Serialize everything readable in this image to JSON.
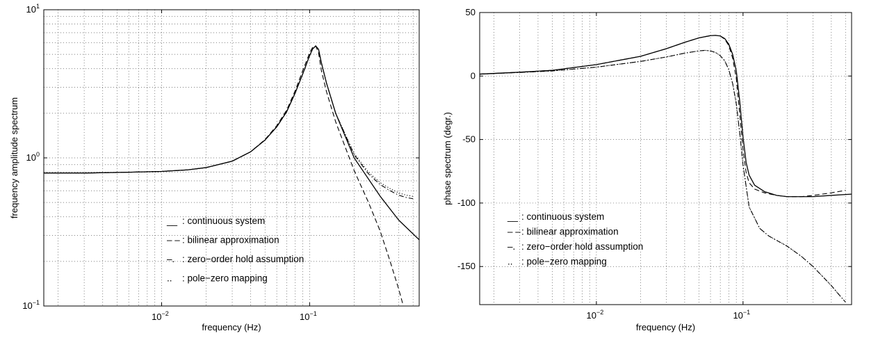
{
  "chart_data": [
    {
      "type": "line",
      "xlabel": "frequency (Hz)",
      "ylabel": "frequency amplitude spectrum",
      "x_scale": "log",
      "y_scale": "log",
      "xlim": [
        0.0016,
        0.55
      ],
      "ylim": [
        0.1,
        10
      ],
      "grid": true,
      "legend_position": "lower-center",
      "x_ticks": [
        {
          "value": 0.01,
          "base": "10",
          "exp": "−2"
        },
        {
          "value": 0.1,
          "base": "10",
          "exp": "−1"
        }
      ],
      "y_ticks": [
        {
          "value": 0.1,
          "base": "10",
          "exp": "−1"
        },
        {
          "value": 1,
          "base": "10",
          "exp": "0"
        },
        {
          "value": 10,
          "base": "10",
          "exp": "1"
        }
      ],
      "legend": [
        {
          "marker": "__",
          "label": " : continuous system",
          "series": 0
        },
        {
          "marker": "– –",
          "label": " : bilinear approximation",
          "series": 1
        },
        {
          "marker": "–.",
          "label": " : zero−order hold assumption",
          "series": 2
        },
        {
          "marker": "..",
          "label": " : pole−zero mapping",
          "series": 3
        }
      ],
      "series": [
        {
          "style": "solid",
          "x": [
            0.0016,
            0.003,
            0.006,
            0.01,
            0.015,
            0.02,
            0.03,
            0.04,
            0.05,
            0.06,
            0.07,
            0.08,
            0.09,
            0.1,
            0.105,
            0.11,
            0.115,
            0.12,
            0.13,
            0.15,
            0.2,
            0.3,
            0.4,
            0.55
          ],
          "y": [
            0.79,
            0.79,
            0.8,
            0.81,
            0.83,
            0.86,
            0.95,
            1.1,
            1.32,
            1.62,
            2.05,
            2.75,
            3.7,
            4.9,
            5.45,
            5.7,
            5.4,
            4.4,
            3.2,
            2.0,
            1.0,
            0.55,
            0.38,
            0.28
          ]
        },
        {
          "style": "dashed",
          "x": [
            0.0016,
            0.003,
            0.006,
            0.01,
            0.015,
            0.02,
            0.03,
            0.04,
            0.05,
            0.06,
            0.07,
            0.08,
            0.09,
            0.1,
            0.105,
            0.11,
            0.115,
            0.12,
            0.13,
            0.15,
            0.2,
            0.25,
            0.3,
            0.35,
            0.4,
            0.43
          ],
          "y": [
            0.79,
            0.79,
            0.8,
            0.81,
            0.83,
            0.86,
            0.95,
            1.1,
            1.33,
            1.65,
            2.1,
            2.85,
            3.9,
            5.1,
            5.6,
            5.7,
            5.1,
            3.9,
            2.8,
            1.75,
            0.82,
            0.5,
            0.32,
            0.2,
            0.13,
            0.1
          ]
        },
        {
          "style": "dashdot",
          "x": [
            0.0016,
            0.003,
            0.006,
            0.01,
            0.015,
            0.02,
            0.03,
            0.04,
            0.05,
            0.06,
            0.07,
            0.08,
            0.09,
            0.1,
            0.105,
            0.11,
            0.115,
            0.12,
            0.13,
            0.15,
            0.2,
            0.25,
            0.3,
            0.35,
            0.4,
            0.45,
            0.5
          ],
          "y": [
            0.79,
            0.79,
            0.8,
            0.81,
            0.83,
            0.86,
            0.95,
            1.1,
            1.32,
            1.62,
            2.05,
            2.75,
            3.7,
            4.9,
            5.45,
            5.7,
            5.4,
            4.4,
            3.2,
            2.0,
            1.05,
            0.78,
            0.66,
            0.6,
            0.56,
            0.54,
            0.53
          ]
        },
        {
          "style": "dotted",
          "x": [
            0.0016,
            0.003,
            0.006,
            0.01,
            0.015,
            0.02,
            0.03,
            0.04,
            0.05,
            0.06,
            0.07,
            0.08,
            0.09,
            0.1,
            0.105,
            0.11,
            0.115,
            0.12,
            0.13,
            0.15,
            0.2,
            0.25,
            0.3,
            0.35,
            0.4,
            0.45,
            0.5
          ],
          "y": [
            0.79,
            0.79,
            0.8,
            0.81,
            0.83,
            0.86,
            0.95,
            1.1,
            1.32,
            1.62,
            2.05,
            2.75,
            3.7,
            4.9,
            5.45,
            5.7,
            5.4,
            4.4,
            3.2,
            2.0,
            1.07,
            0.8,
            0.68,
            0.62,
            0.58,
            0.56,
            0.55
          ]
        }
      ]
    },
    {
      "type": "line",
      "xlabel": "frequency (Hz)",
      "ylabel": "phase spectrum (degr.)",
      "x_scale": "log",
      "y_scale": "linear",
      "xlim": [
        0.0016,
        0.55
      ],
      "ylim": [
        -180,
        50
      ],
      "grid": true,
      "legend_position": "lower-left",
      "x_ticks": [
        {
          "value": 0.01,
          "base": "10",
          "exp": "−2"
        },
        {
          "value": 0.1,
          "base": "10",
          "exp": "−1"
        }
      ],
      "y_ticks": [
        {
          "value": 50,
          "label": "50"
        },
        {
          "value": 0,
          "label": "0"
        },
        {
          "value": -50,
          "label": "-50"
        },
        {
          "value": -100,
          "label": "-100"
        },
        {
          "value": -150,
          "label": "-150"
        }
      ],
      "legend": [
        {
          "marker": "__",
          "label": " : continuous system",
          "series": 0
        },
        {
          "marker": "– –",
          "label": " : bilinear approximation",
          "series": 1
        },
        {
          "marker": "–.",
          "label": " : zero−order hold assumption",
          "series": 2
        },
        {
          "marker": "..",
          "label": " : pole−zero mapping",
          "series": 3
        }
      ],
      "series": [
        {
          "style": "solid",
          "x": [
            0.0016,
            0.003,
            0.005,
            0.01,
            0.02,
            0.03,
            0.04,
            0.05,
            0.06,
            0.065,
            0.07,
            0.075,
            0.08,
            0.085,
            0.09,
            0.095,
            0.1,
            0.105,
            0.11,
            0.12,
            0.14,
            0.17,
            0.2,
            0.25,
            0.3,
            0.4,
            0.55
          ],
          "y": [
            1.5,
            3,
            4.5,
            9,
            15.5,
            21.5,
            26.5,
            30,
            31.8,
            32,
            31.5,
            29.5,
            25,
            17,
            4,
            -20,
            -48,
            -68,
            -78,
            -86,
            -91,
            -94,
            -95,
            -95,
            -95,
            -94,
            -93
          ]
        },
        {
          "style": "dashed",
          "x": [
            0.0016,
            0.003,
            0.005,
            0.01,
            0.02,
            0.03,
            0.04,
            0.05,
            0.06,
            0.065,
            0.07,
            0.075,
            0.08,
            0.085,
            0.09,
            0.095,
            0.1,
            0.105,
            0.11,
            0.12,
            0.14,
            0.17,
            0.2,
            0.25,
            0.3,
            0.4,
            0.5
          ],
          "y": [
            1.5,
            3,
            4.5,
            9,
            15.5,
            21.5,
            26.5,
            30,
            31.8,
            32,
            31.5,
            29,
            24,
            14,
            -2,
            -30,
            -58,
            -76,
            -84,
            -89,
            -92,
            -94,
            -95,
            -95,
            -94,
            -92,
            -90
          ]
        },
        {
          "style": "dashdot",
          "x": [
            0.0016,
            0.003,
            0.005,
            0.01,
            0.02,
            0.03,
            0.04,
            0.05,
            0.055,
            0.06,
            0.065,
            0.07,
            0.075,
            0.08,
            0.085,
            0.09,
            0.095,
            0.1,
            0.11,
            0.13,
            0.15,
            0.2,
            0.25,
            0.3,
            0.35,
            0.4,
            0.45,
            0.5
          ],
          "y": [
            1.5,
            2.8,
            4,
            7,
            11.5,
            15,
            18,
            19.8,
            20.2,
            19.8,
            18.5,
            16,
            12,
            5,
            -6,
            -22,
            -45,
            -70,
            -103,
            -120,
            -126,
            -134,
            -142,
            -150,
            -158,
            -165,
            -172,
            -178
          ]
        },
        {
          "style": "dotted",
          "x": [
            0.0016,
            0.003,
            0.005,
            0.01,
            0.02,
            0.03,
            0.04,
            0.05,
            0.055,
            0.06,
            0.065,
            0.07,
            0.075,
            0.08,
            0.085,
            0.09,
            0.095,
            0.1,
            0.11,
            0.13,
            0.15,
            0.2,
            0.25,
            0.3,
            0.35,
            0.4,
            0.45,
            0.5
          ],
          "y": [
            1.5,
            2.8,
            4,
            7,
            11.5,
            15,
            18,
            19.8,
            20.2,
            19.8,
            18.5,
            16,
            12,
            5,
            -6,
            -22,
            -45,
            -70,
            -103,
            -120,
            -126,
            -134,
            -142,
            -150,
            -158,
            -165,
            -172,
            -178
          ]
        }
      ]
    }
  ]
}
